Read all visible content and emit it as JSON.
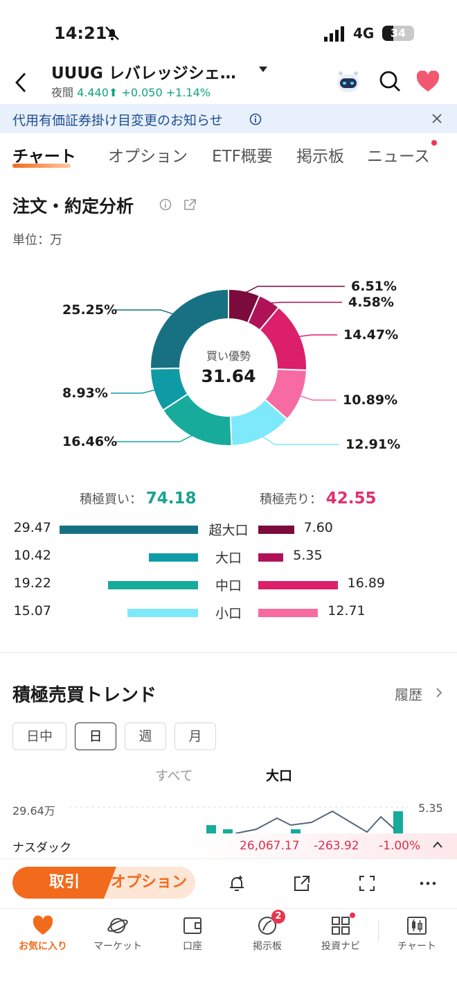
{
  "status": {
    "time": "14:21",
    "network": "4G",
    "battery": "34",
    "battery_level": 0.34
  },
  "header": {
    "title": "UUUG レバレッジシェ…",
    "session_label": "夜間",
    "price": "4.440",
    "change": "+0.050",
    "change_pct": "+1.14%"
  },
  "notice": {
    "text": "代用有価証券掛け目変更のお知らせ"
  },
  "tabs": [
    {
      "label": "チャート",
      "active": true
    },
    {
      "label": "オプション"
    },
    {
      "label": "ETF概要"
    },
    {
      "label": "掲示板"
    },
    {
      "label": "ニュース"
    }
  ],
  "analysis": {
    "title": "注文・約定分析",
    "unit_label": "単位：万",
    "center_label": "買い優勢",
    "center_value": "31.64",
    "segments": [
      {
        "pct": "6.51%",
        "value": 6.51,
        "color": "#7a0b3c"
      },
      {
        "pct": "4.58%",
        "value": 4.58,
        "color": "#b01257"
      },
      {
        "pct": "14.47%",
        "value": 14.47,
        "color": "#dc1f6b"
      },
      {
        "pct": "10.89%",
        "value": 10.89,
        "color": "#f76aa2"
      },
      {
        "pct": "12.91%",
        "value": 12.91,
        "color": "#7de9fa"
      },
      {
        "pct": "16.46%",
        "value": 16.46,
        "color": "#17ab9b"
      },
      {
        "pct": "8.93%",
        "value": 8.93,
        "color": "#0f9ba6"
      },
      {
        "pct": "25.25%",
        "value": 25.25,
        "color": "#177183"
      }
    ],
    "buy_label": "積極買い：",
    "buy_total": "74.18",
    "sell_label": "積極売り：",
    "sell_total": "42.55",
    "rows": [
      {
        "category": "超大口",
        "buy": "29.47",
        "sell": "7.60"
      },
      {
        "category": "大口",
        "buy": "10.42",
        "sell": "5.35"
      },
      {
        "category": "中口",
        "buy": "19.22",
        "sell": "16.89"
      },
      {
        "category": "小口",
        "buy": "15.07",
        "sell": "12.71"
      }
    ]
  },
  "trend": {
    "title": "積極売買トレンド",
    "history_label": "履歴",
    "periods": [
      "日中",
      "日",
      "週",
      "月"
    ],
    "active_period": 1,
    "subtabs": [
      "すべて",
      "大口"
    ],
    "active_subtab": 1,
    "axis_left": "29.64万",
    "axis_right": "5.35"
  },
  "ticker": {
    "name": "ナスダック",
    "value": "26,067.17",
    "change": "-263.92",
    "change_pct": "-1.00%"
  },
  "actions": {
    "trade_label": "取引",
    "option_label": "オプション"
  },
  "tabbar": [
    {
      "label": "お気に入り",
      "icon": "heart-icon"
    },
    {
      "label": "マーケット",
      "icon": "planet-icon"
    },
    {
      "label": "口座",
      "icon": "wallet-icon"
    },
    {
      "label": "掲示板",
      "icon": "board-icon",
      "badge": "2"
    },
    {
      "label": "投資ナビ",
      "icon": "grid-icon"
    },
    {
      "label": "チャート",
      "icon": "candlestick-icon"
    }
  ]
}
